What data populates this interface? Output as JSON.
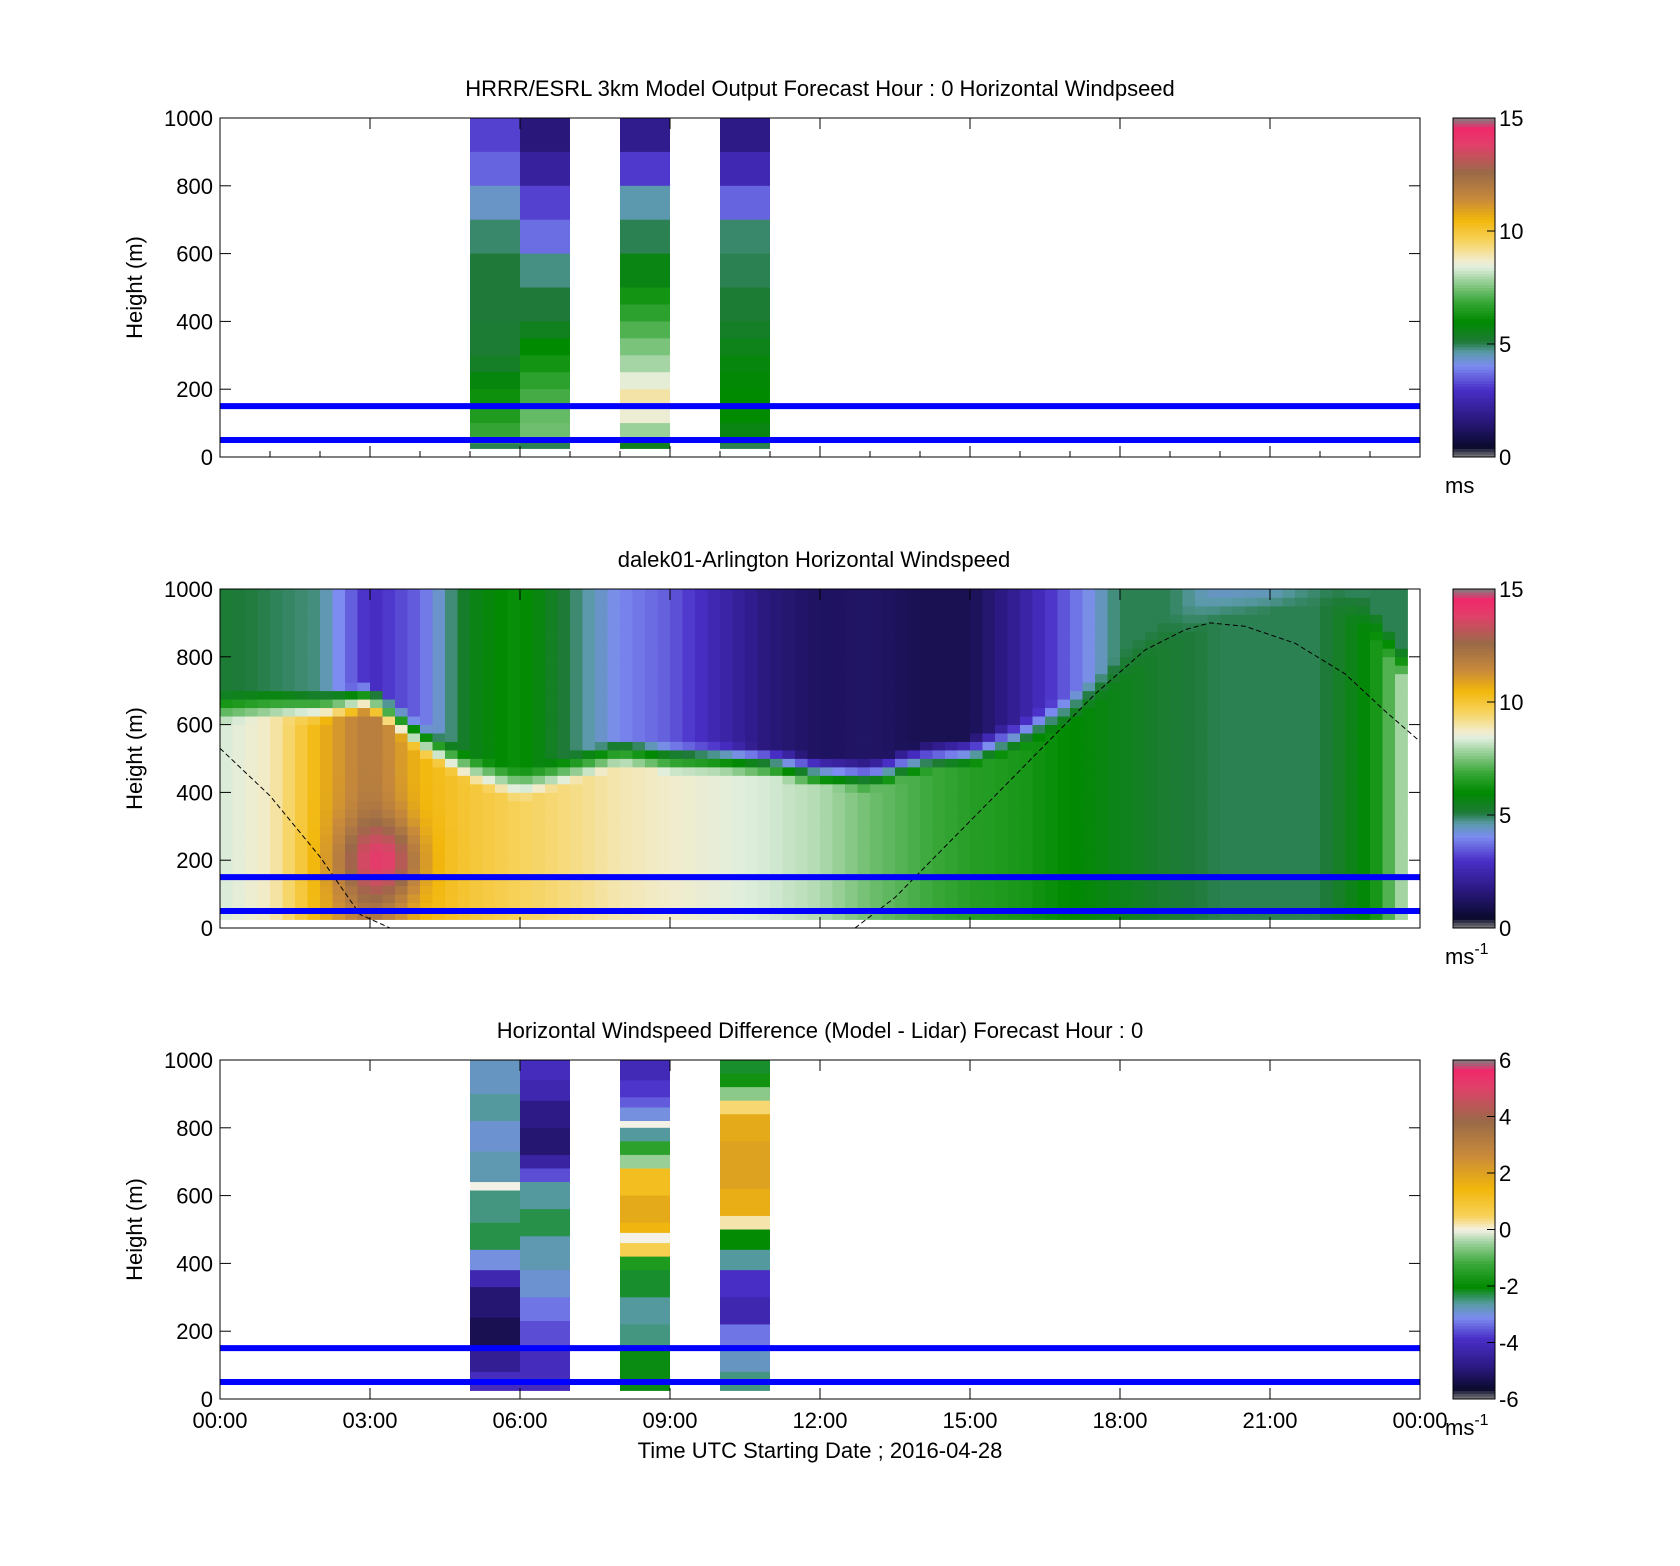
{
  "colors": {
    "ref_line": "#0000ff",
    "speed_scale": [
      [
        0.0,
        "#808080"
      ],
      [
        0.03,
        "#0a0a2e"
      ],
      [
        0.12,
        "#2e1a86"
      ],
      [
        0.2,
        "#4a2fc8"
      ],
      [
        0.27,
        "#7c8cf0"
      ],
      [
        0.31,
        "#5a9aa8"
      ],
      [
        0.34,
        "#1f7a3a"
      ],
      [
        0.4,
        "#008a00"
      ],
      [
        0.46,
        "#3aa83a"
      ],
      [
        0.52,
        "#9ad09a"
      ],
      [
        0.56,
        "#dfeedd"
      ],
      [
        0.58,
        "#f2eccc"
      ],
      [
        0.64,
        "#f7d25a"
      ],
      [
        0.7,
        "#f2b70c"
      ],
      [
        0.76,
        "#c88a3a"
      ],
      [
        0.84,
        "#9a6a48"
      ],
      [
        0.92,
        "#e0406a"
      ],
      [
        0.97,
        "#f0286a"
      ],
      [
        1.0,
        "#808080"
      ]
    ],
    "diff_scale": [
      [
        0.0,
        "#808080"
      ],
      [
        0.03,
        "#0a0a2e"
      ],
      [
        0.1,
        "#2e1a86"
      ],
      [
        0.18,
        "#4a2fc8"
      ],
      [
        0.24,
        "#7c8cf0"
      ],
      [
        0.28,
        "#5a9aa8"
      ],
      [
        0.33,
        "#008a00"
      ],
      [
        0.4,
        "#3aa83a"
      ],
      [
        0.46,
        "#9ad09a"
      ],
      [
        0.5,
        "#f4f2e6"
      ],
      [
        0.54,
        "#f7d25a"
      ],
      [
        0.62,
        "#f2b70c"
      ],
      [
        0.72,
        "#c88a3a"
      ],
      [
        0.82,
        "#9a6a48"
      ],
      [
        0.92,
        "#e0406a"
      ],
      [
        0.97,
        "#f0286a"
      ],
      [
        1.0,
        "#808080"
      ]
    ]
  },
  "chart_data": [
    {
      "type": "heatmap",
      "title": "HRRR/ESRL 3km Model Output   Forecast Hour : 0 Horizontal Windpseed",
      "ylabel": "Height (m)",
      "ylim": [
        0,
        1000
      ],
      "yticks": [
        "0",
        "200",
        "400",
        "600",
        "800",
        "1000"
      ],
      "xlim": [
        0,
        24
      ],
      "colorbar": {
        "min": 0,
        "max": 15,
        "ticks": [
          "0",
          "5",
          "10",
          "15"
        ],
        "unit": "ms",
        "unit_sup": "",
        "scale": "speed"
      },
      "reference_lines_m": [
        50,
        150
      ],
      "columns": [
        {
          "t_start": 5.0,
          "t_end": 6.0,
          "z_top": 1000,
          "z_bottom": 25,
          "values": [
            [
              1000,
              900,
              3.2
            ],
            [
              900,
              800,
              3.6
            ],
            [
              800,
              700,
              4.4
            ],
            [
              700,
              600,
              4.9
            ],
            [
              600,
              500,
              5.1
            ],
            [
              500,
              400,
              5.1
            ],
            [
              400,
              300,
              5.2
            ],
            [
              300,
              250,
              5.4
            ],
            [
              250,
              200,
              5.8
            ],
            [
              200,
              150,
              6.2
            ],
            [
              150,
              100,
              6.5
            ],
            [
              100,
              60,
              6.8
            ],
            [
              60,
              40,
              7.0
            ],
            [
              40,
              25,
              5.0
            ]
          ]
        },
        {
          "t_start": 6.0,
          "t_end": 7.0,
          "z_top": 1000,
          "z_bottom": 25,
          "values": [
            [
              1000,
              900,
              1.6
            ],
            [
              900,
              800,
              2.2
            ],
            [
              800,
              700,
              3.2
            ],
            [
              700,
              600,
              3.7
            ],
            [
              600,
              500,
              4.8
            ],
            [
              500,
              400,
              5.1
            ],
            [
              400,
              350,
              5.5
            ],
            [
              350,
              300,
              6.0
            ],
            [
              300,
              250,
              6.3
            ],
            [
              250,
              200,
              6.7
            ],
            [
              200,
              150,
              7.0
            ],
            [
              150,
              100,
              7.3
            ],
            [
              100,
              50,
              7.4
            ],
            [
              50,
              25,
              5.0
            ]
          ]
        },
        {
          "t_start": 8.0,
          "t_end": 9.0,
          "z_top": 1000,
          "z_bottom": 25,
          "values": [
            [
              1000,
              900,
              1.9
            ],
            [
              900,
              800,
              3.1
            ],
            [
              800,
              700,
              4.6
            ],
            [
              700,
              600,
              5.0
            ],
            [
              600,
              500,
              5.7
            ],
            [
              500,
              450,
              6.3
            ],
            [
              450,
              400,
              6.7
            ],
            [
              400,
              350,
              7.1
            ],
            [
              350,
              300,
              7.5
            ],
            [
              300,
              250,
              7.9
            ],
            [
              250,
              200,
              8.5
            ],
            [
              200,
              150,
              9.0
            ],
            [
              150,
              100,
              8.6
            ],
            [
              100,
              50,
              7.8
            ],
            [
              50,
              25,
              5.5
            ]
          ]
        },
        {
          "t_start": 10.0,
          "t_end": 11.0,
          "z_top": 1000,
          "z_bottom": 25,
          "values": [
            [
              1000,
              900,
              1.8
            ],
            [
              900,
              800,
              2.6
            ],
            [
              800,
              700,
              3.6
            ],
            [
              700,
              600,
              4.9
            ],
            [
              600,
              500,
              5.0
            ],
            [
              500,
              400,
              5.2
            ],
            [
              400,
              350,
              5.4
            ],
            [
              350,
              300,
              5.6
            ],
            [
              300,
              250,
              5.8
            ],
            [
              250,
              200,
              5.9
            ],
            [
              200,
              100,
              6.0
            ],
            [
              100,
              40,
              5.7
            ],
            [
              40,
              25,
              5.0
            ]
          ]
        }
      ]
    },
    {
      "type": "heatmap",
      "title": "dalek01-Arlington  Horizontal Windspeed",
      "ylabel": "Height (m)",
      "ylim": [
        0,
        1000
      ],
      "yticks": [
        "0",
        "200",
        "400",
        "600",
        "800",
        "1000"
      ],
      "xlim": [
        0,
        24
      ],
      "colorbar": {
        "min": 0,
        "max": 15,
        "ticks": [
          "0",
          "5",
          "10",
          "15"
        ],
        "unit": "ms",
        "unit_sup": "-1",
        "scale": "speed"
      },
      "reference_lines_m": [
        50,
        150
      ],
      "time_step_h": 0.25,
      "height_step_m": 25,
      "z_bottom": 25,
      "fill_until_h": 23.75,
      "boundary_layer_m": {
        "t": [
          0,
          1,
          2,
          3,
          4,
          5,
          6,
          7,
          8,
          9,
          10,
          11,
          12,
          13,
          14,
          15,
          16,
          17,
          18,
          19,
          20,
          21,
          22,
          23,
          24
        ],
        "z": [
          650,
          660,
          650,
          680,
          560,
          470,
          420,
          470,
          520,
          500,
          500,
          490,
          460,
          450,
          500,
          520,
          570,
          650,
          760,
          880,
          960,
          980,
          1000,
          920,
          700
        ]
      },
      "transition_band_m": 90,
      "upper_speed": {
        "t": [
          0,
          1,
          2,
          3,
          4,
          5,
          6,
          7,
          8,
          9,
          10,
          11,
          12,
          13,
          14,
          15,
          16,
          17,
          18,
          19,
          20,
          21,
          22,
          23,
          24
        ],
        "v": [
          5.2,
          5.0,
          4.8,
          2.8,
          3.6,
          5.6,
          6.2,
          5.0,
          4.0,
          3.5,
          2.5,
          1.6,
          1.2,
          1.3,
          1.0,
          1.0,
          2.2,
          3.6,
          5.0,
          5.0,
          4.3,
          4.2,
          4.8,
          5.0,
          5.0
        ]
      },
      "lower_speed": {
        "t": [
          0,
          1,
          2,
          3,
          4,
          5,
          6,
          7,
          8,
          9,
          10,
          11,
          12,
          13,
          14,
          15,
          16,
          17,
          18,
          19,
          20,
          21,
          22,
          23,
          24
        ],
        "v": [
          8.3,
          8.8,
          10.6,
          12.0,
          10.5,
          10.0,
          9.6,
          9.3,
          8.9,
          8.7,
          8.5,
          8.3,
          8.0,
          7.4,
          7.0,
          6.6,
          6.4,
          6.0,
          5.6,
          5.2,
          5.0,
          5.0,
          5.0,
          6.0,
          9.0
        ]
      },
      "jet_core": {
        "t": 3.2,
        "z": 200,
        "v": 14.0,
        "dt": 0.7,
        "dz": 110
      },
      "curve_m": {
        "t": [
          0.0,
          1.0,
          2.0,
          2.8,
          3.4,
          6,
          9,
          12,
          12.7,
          13.5,
          14.5,
          15.5,
          16.5,
          17.5,
          18.5,
          19.3,
          19.8,
          20.5,
          21.5,
          22.5,
          23.3,
          24.0
        ],
        "z": [
          530,
          390,
          210,
          40,
          0,
          null,
          null,
          null,
          0,
          90,
          240,
          390,
          540,
          690,
          820,
          880,
          900,
          890,
          840,
          750,
          640,
          550
        ]
      }
    },
    {
      "type": "heatmap",
      "title": "Horizontal Windspeed Difference (Model - Lidar) Forecast Hour : 0",
      "ylabel": "Height (m)",
      "xlabel": "Time UTC  Starting Date ; 2016-04-28",
      "ylim": [
        0,
        1000
      ],
      "yticks": [
        "0",
        "200",
        "400",
        "600",
        "800",
        "1000"
      ],
      "xlim": [
        0,
        24
      ],
      "xticks": [
        "00:00",
        "03:00",
        "06:00",
        "09:00",
        "12:00",
        "15:00",
        "18:00",
        "21:00",
        "00:00"
      ],
      "colorbar": {
        "min": -6,
        "max": 6,
        "ticks": [
          "-6",
          "-4",
          "-2",
          "0",
          "2",
          "4",
          "6"
        ],
        "unit": "ms",
        "unit_sup": "-1",
        "scale": "diff"
      },
      "reference_lines_m": [
        50,
        150
      ],
      "columns": [
        {
          "t_start": 5.0,
          "t_end": 6.0,
          "z_top": 1000,
          "z_bottom": 25,
          "values": [
            [
              1000,
              900,
              -2.8
            ],
            [
              900,
              820,
              -2.6
            ],
            [
              820,
              730,
              -2.9
            ],
            [
              730,
              640,
              -2.7
            ],
            [
              640,
              615,
              0.0
            ],
            [
              615,
              520,
              -2.5
            ],
            [
              520,
              440,
              -2.3
            ],
            [
              440,
              380,
              -3.0
            ],
            [
              380,
              330,
              -4.2
            ],
            [
              330,
              240,
              -5.0
            ],
            [
              240,
              150,
              -5.3
            ],
            [
              150,
              80,
              -4.6
            ],
            [
              80,
              25,
              -4.0
            ]
          ]
        },
        {
          "t_start": 6.0,
          "t_end": 7.0,
          "z_top": 1000,
          "z_bottom": 25,
          "values": [
            [
              1000,
              940,
              -4.0
            ],
            [
              940,
              880,
              -4.2
            ],
            [
              880,
              800,
              -4.8
            ],
            [
              800,
              720,
              -5.0
            ],
            [
              720,
              680,
              -4.4
            ],
            [
              680,
              640,
              -3.6
            ],
            [
              640,
              560,
              -2.6
            ],
            [
              560,
              480,
              -2.3
            ],
            [
              480,
              380,
              -2.7
            ],
            [
              380,
              300,
              -2.9
            ],
            [
              300,
              230,
              -3.3
            ],
            [
              230,
              150,
              -3.6
            ],
            [
              150,
              80,
              -4.0
            ],
            [
              80,
              25,
              -4.0
            ]
          ]
        },
        {
          "t_start": 8.0,
          "t_end": 9.0,
          "z_top": 1000,
          "z_bottom": 25,
          "values": [
            [
              1000,
              940,
              -4.1
            ],
            [
              940,
              890,
              -3.8
            ],
            [
              890,
              860,
              -3.5
            ],
            [
              860,
              820,
              -3.0
            ],
            [
              820,
              800,
              0.0
            ],
            [
              800,
              760,
              -2.6
            ],
            [
              760,
              720,
              -1.4
            ],
            [
              720,
              680,
              -0.5
            ],
            [
              680,
              600,
              1.2
            ],
            [
              600,
              520,
              1.8
            ],
            [
              520,
              490,
              1.5
            ],
            [
              490,
              460,
              0.0
            ],
            [
              460,
              420,
              0.6
            ],
            [
              420,
              380,
              -1.6
            ],
            [
              380,
              300,
              -2.2
            ],
            [
              300,
              220,
              -2.6
            ],
            [
              220,
              150,
              -2.5
            ],
            [
              150,
              25,
              -2.1
            ]
          ]
        },
        {
          "t_start": 10.0,
          "t_end": 11.0,
          "z_top": 1000,
          "z_bottom": 25,
          "values": [
            [
              1000,
              960,
              -2.2
            ],
            [
              960,
              920,
              -1.8
            ],
            [
              920,
              880,
              -0.6
            ],
            [
              880,
              840,
              0.4
            ],
            [
              840,
              760,
              1.8
            ],
            [
              760,
              620,
              2.0
            ],
            [
              620,
              540,
              1.7
            ],
            [
              540,
              500,
              0.2
            ],
            [
              500,
              440,
              -2.0
            ],
            [
              440,
              380,
              -2.6
            ],
            [
              380,
              300,
              -3.9
            ],
            [
              300,
              220,
              -4.2
            ],
            [
              220,
              150,
              -3.3
            ],
            [
              150,
              80,
              -2.8
            ],
            [
              80,
              25,
              -2.5
            ]
          ]
        }
      ]
    }
  ]
}
